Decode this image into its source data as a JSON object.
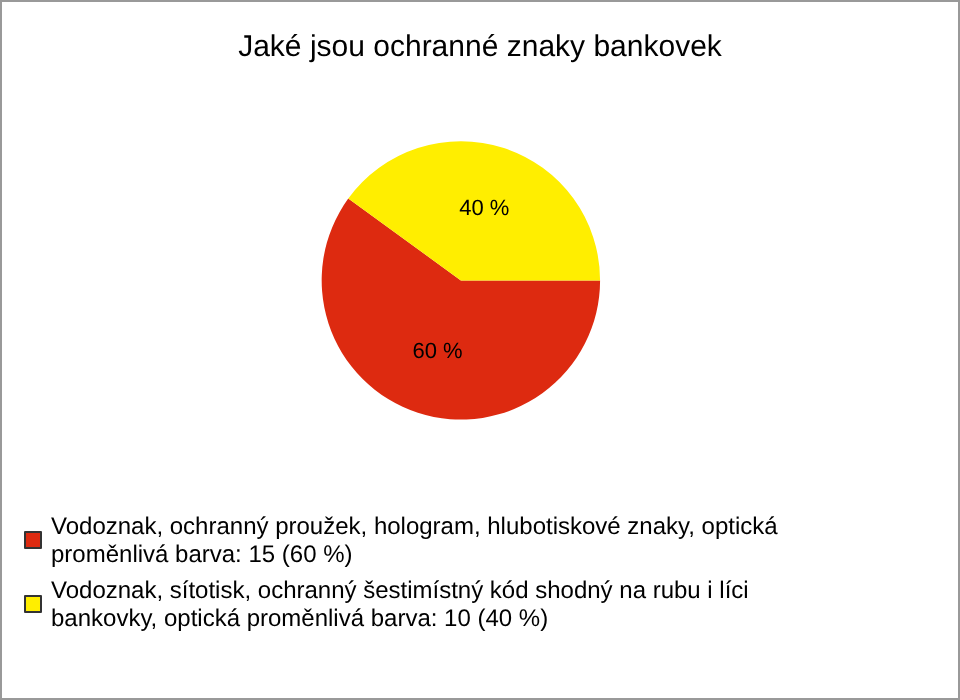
{
  "chart_data": {
    "type": "pie",
    "title": "Jaké jsou ochranné znaky bankovek",
    "categories": [
      "Vodoznak, ochranný proužek, hologram, hlubotiskové znaky, optická proměnlivá barva: 15 (60 %)",
      "Vodoznak, sítotisk, ochranný šestimístný kód shodný na rubu i líci bankovky, optická proměnlivá barva: 10 (40 %)"
    ],
    "values": [
      60,
      40
    ],
    "value_labels": [
      "60 %",
      "40 %"
    ],
    "colors": [
      "#dd2a10",
      "#ffee00"
    ],
    "legend": "bottom left"
  }
}
